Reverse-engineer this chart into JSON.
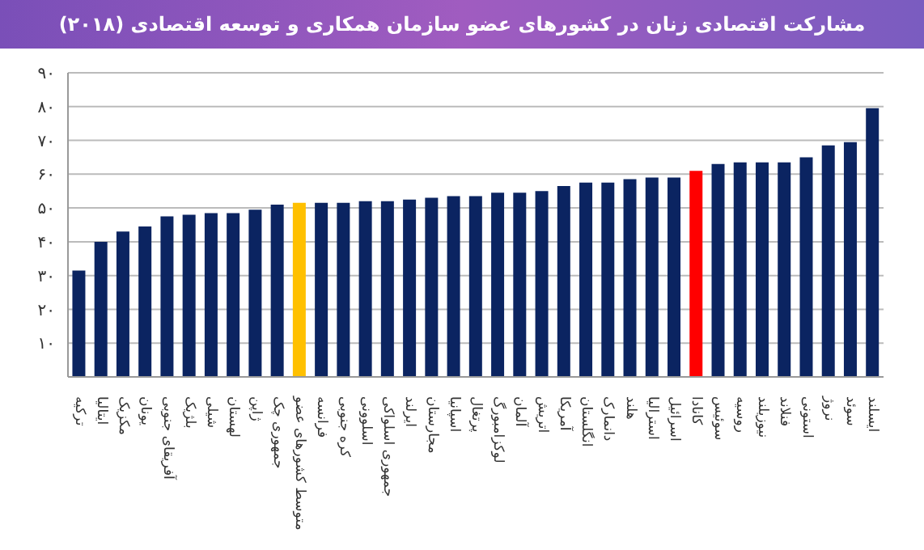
{
  "chart_data": {
    "type": "bar",
    "title": "مشارکت اقتصادی زنان در کشورهای عضو سازمان همکاری و توسعه اقتصادی (۲۰۱۸)",
    "categories": [
      "ترکیه",
      "ایتالیا",
      "مکزیک",
      "یونان",
      "آفریقای جنوبی",
      "بلژیک",
      "شیلی",
      "لهستان",
      "ژاپن",
      "جمهوری چک",
      "متوسط کشورهای عضو",
      "فرانسه",
      "کره جنوبی",
      "اسلوونی",
      "جمهوری اسلواکی",
      "ایرلند",
      "مجارستان",
      "اسپانیا",
      "پرتغال",
      "لوکزامبورگ",
      "آلمان",
      "اتریش",
      "آمریکا",
      "انگلستان",
      "دانمارک",
      "هلند",
      "استرالیا",
      "اسرائیل",
      "کانادا",
      "سوئیس",
      "روسیه",
      "نیوزیلند",
      "فنلاند",
      "استونی",
      "نروژ",
      "سوئد",
      "ایسلند"
    ],
    "values": [
      31.5,
      40,
      43,
      44.5,
      47.5,
      48,
      48.5,
      48.5,
      49.5,
      51,
      51.5,
      51.5,
      51.5,
      52,
      52,
      52.5,
      53,
      53.5,
      53.5,
      54.5,
      54.5,
      55,
      56.5,
      57.5,
      57.5,
      58.5,
      59,
      59,
      61,
      63,
      63.5,
      63.5,
      63.5,
      65,
      68.5,
      69.5,
      79.5
    ],
    "colors": [
      "#0b2461",
      "#0b2461",
      "#0b2461",
      "#0b2461",
      "#0b2461",
      "#0b2461",
      "#0b2461",
      "#0b2461",
      "#0b2461",
      "#0b2461",
      "#ffc000",
      "#0b2461",
      "#0b2461",
      "#0b2461",
      "#0b2461",
      "#0b2461",
      "#0b2461",
      "#0b2461",
      "#0b2461",
      "#0b2461",
      "#0b2461",
      "#0b2461",
      "#0b2461",
      "#0b2461",
      "#0b2461",
      "#0b2461",
      "#0b2461",
      "#0b2461",
      "#ff0000",
      "#0b2461",
      "#0b2461",
      "#0b2461",
      "#0b2461",
      "#0b2461",
      "#0b2461",
      "#0b2461",
      "#0b2461"
    ],
    "ylim": [
      0,
      90
    ],
    "yticks": [
      {
        "value": 10,
        "label": "۱۰"
      },
      {
        "value": 20,
        "label": "۲۰"
      },
      {
        "value": 30,
        "label": "۳۰"
      },
      {
        "value": 40,
        "label": "۴۰"
      },
      {
        "value": 50,
        "label": "۵۰"
      },
      {
        "value": 60,
        "label": "۶۰"
      },
      {
        "value": 70,
        "label": "۷۰"
      },
      {
        "value": 80,
        "label": "۸۰"
      },
      {
        "value": 90,
        "label": "۹۰"
      }
    ],
    "grid": "y"
  }
}
